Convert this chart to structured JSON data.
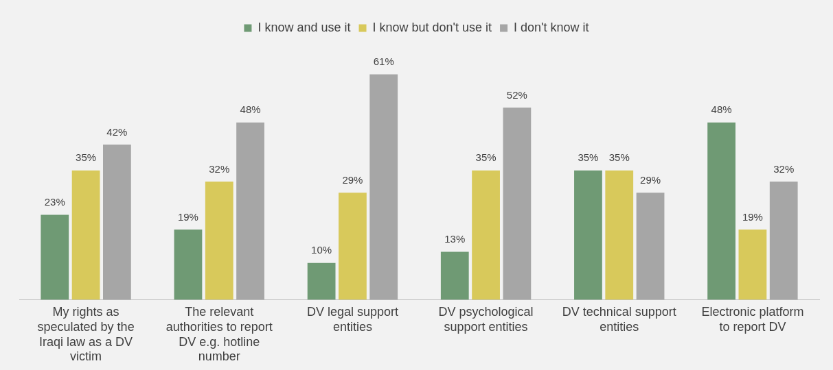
{
  "chart_data": {
    "type": "bar",
    "categories": [
      "My rights as speculated by the Iraqi law as a DV victim",
      "The relevant authorities to report DV e.g. hotline number",
      "DV legal support entities",
      "DV psychological support entities",
      "DV technical support entities",
      "Electronic platform to report DV"
    ],
    "series": [
      {
        "name": "I know and use it",
        "color": "#6f9a74",
        "values": [
          23,
          19,
          10,
          13,
          35,
          48
        ],
        "value_labels": [
          "23%",
          "19%",
          "10%",
          "13%",
          "35%",
          "48%"
        ]
      },
      {
        "name": "I know but don't use it",
        "color": "#d8c95b",
        "values": [
          35,
          32,
          29,
          35,
          35,
          19
        ],
        "value_labels": [
          "35%",
          "32%",
          "29%",
          "35%",
          "35%",
          "19%"
        ]
      },
      {
        "name": "I don't know it",
        "color": "#a6a6a6",
        "values": [
          42,
          48,
          61,
          52,
          29,
          32
        ],
        "value_labels": [
          "42%",
          "48%",
          "61%",
          "52%",
          "29%",
          "32%"
        ]
      }
    ],
    "legend": "top",
    "grid": false,
    "tick_labels": "x"
  }
}
